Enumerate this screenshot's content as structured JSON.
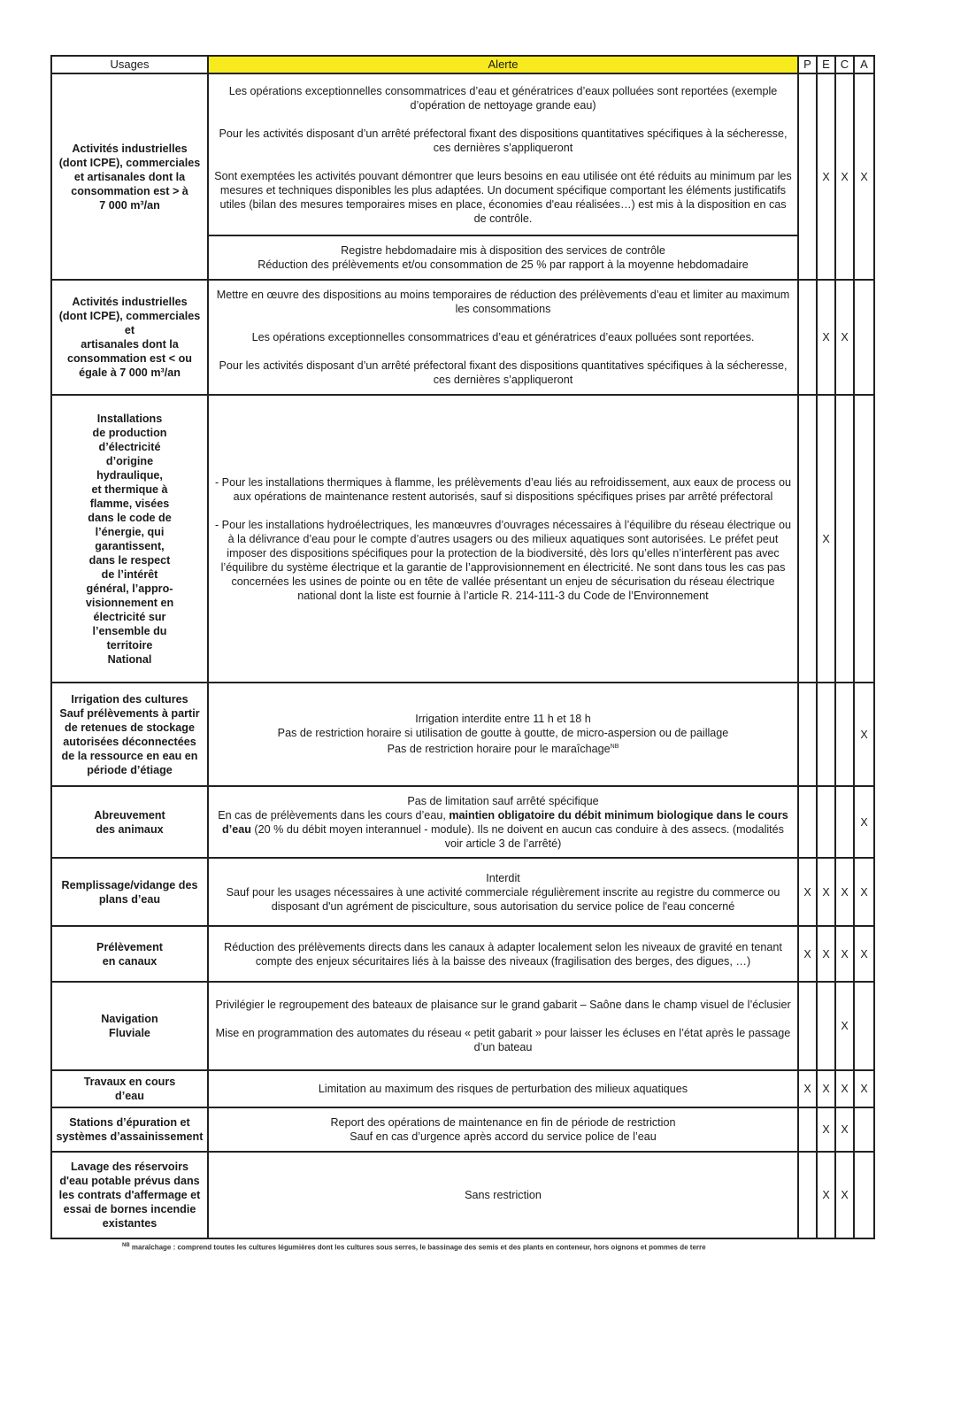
{
  "header": {
    "usages": "Usages",
    "alerte": "Alerte",
    "levels": [
      "P",
      "E",
      "C",
      "A"
    ]
  },
  "rows": [
    {
      "usage": [
        "Activités industrielles",
        "(dont ICPE), commerciales",
        "et artisanales dont la",
        "consommation est > à",
        "7 000 m³/an"
      ],
      "alert_blocks": [
        [
          [
            "Les opérations exceptionnelles consommatrices d’eau et génératrices d’eaux polluées sont reportées (exemple d’opération de nettoyage grande eau)"
          ],
          [
            "Pour les activités disposant d’un arrêté préfectoral fixant des dispositions quantitatives spécifiques à la sécheresse, ces dernières s’appliqueront"
          ],
          [
            "Sont exemptées les activités  pouvant démontrer que leurs besoins en eau utilisée ont été réduits au minimum par les mesures et techniques disponibles les plus adaptées. Un document spécifique comportant les éléments justificatifs utiles (bilan des mesures temporaires mises en place, économies d'eau réalisées…) est mis à la disposition en cas de contrôle."
          ]
        ],
        [
          [
            "Registre hebdomadaire mis à disposition des services de contrôle",
            "Réduction des prélèvements et/ou consommation de 25 % par rapport à la moyenne hebdomadaire"
          ]
        ]
      ],
      "marks": [
        "",
        "X",
        "X",
        "X"
      ]
    },
    {
      "usage": [
        "Activités industrielles",
        "(dont ICPE), commerciales",
        "et",
        "artisanales dont la",
        "consommation est < ou",
        "égale à 7 000 m³/an"
      ],
      "alert_blocks": [
        [
          [
            "Mettre en œuvre des dispositions au moins temporaires de réduction des prélèvements d’eau et limiter au maximum les consommations"
          ],
          [
            "Les opérations exceptionnelles consommatrices d’eau et génératrices d’eaux polluées sont reportées."
          ],
          [
            "Pour les activités disposant d’un arrêté préfectoral fixant des dispositions quantitatives spécifiques à la sécheresse, ces dernières s’appliqueront"
          ]
        ]
      ],
      "marks": [
        "",
        "X",
        "X",
        ""
      ]
    },
    {
      "usage": [
        "Installations",
        "de production",
        "d’électricité",
        "d’origine",
        "hydraulique,",
        "et thermique à",
        "flamme, visées",
        "dans le code de",
        "l’énergie, qui",
        "garantissent,",
        "dans le respect",
        "de l’intérêt",
        "général, l’appro-",
        "visionnement en",
        "électricité sur",
        "l’ensemble du",
        "territoire",
        "National"
      ],
      "alert_blocks": [
        [
          [
            "- Pour les installations thermiques à flamme, les prélèvements d’eau liés au refroidissement, aux eaux de process ou aux opérations de maintenance restent autorisés, sauf si dispositions spécifiques prises par arrêté préfectoral"
          ],
          [
            "- Pour les installations hydroélectriques, les manœuvres d’ouvrages nécessaires à l’équilibre du réseau électrique ou à la délivrance d’eau pour le compte d’autres usagers ou des milieux aquatiques sont autorisées. Le préfet peut imposer des dispositions spécifiques pour la protection de la biodiversité, dès lors qu’elles n’interfèrent pas avec l’équilibre du système électrique et la garantie de l’approvisionnement en électricité. Ne sont dans tous les cas pas concernées les usines de pointe ou en tête de vallée présentant un enjeu de sécurisation du réseau électrique national dont la liste est fournie à l’article R. 214-111-3 du Code de l’Environnement"
          ]
        ]
      ],
      "marks": [
        "",
        "X",
        "",
        ""
      ]
    },
    {
      "usage": [
        "Irrigation des cultures",
        "Sauf prélèvements à partir",
        "de retenues de stockage",
        "autorisées déconnectées",
        "de la ressource en eau en",
        "période d’étiage"
      ],
      "alert_blocks": [
        [
          [
            "Irrigation interdite entre 11 h et 18 h",
            "Pas de restriction horaire si utilisation de goutte à goutte, de micro-aspersion ou de paillage",
            "Pas de restriction horaire pour le maraîchage"
          ]
        ]
      ],
      "note_ref": "NB",
      "marks": [
        "",
        "",
        "",
        "X"
      ]
    },
    {
      "usage": [
        "Abreuvement",
        "des animaux"
      ],
      "alert_blocks": [
        [
          [
            "Pas de limitation sauf arrêté spécifique"
          ]
        ]
      ],
      "rich": {
        "before": "En cas de prélèvements dans les cours d’eau, ",
        "bold": "maintien obligatoire du débit minimum biologique dans le cours d’eau",
        "after": " (20 % du débit moyen interannuel - module). Ils ne doivent en aucun cas conduire à des assecs. (modalités voir article 3 de l’arrêté)"
      },
      "marks": [
        "",
        "",
        "",
        "X"
      ]
    },
    {
      "usage": [
        "Remplissage/vidange des",
        "plans d’eau"
      ],
      "alert_blocks": [
        [
          [
            "Interdit",
            "Sauf pour les usages nécessaires à une activité commerciale régulièrement inscrite au registre du commerce ou",
            "disposant d'un agrément de pisciculture, sous autorisation du service police de l'eau concerné"
          ]
        ]
      ],
      "marks": [
        "X",
        "X",
        "X",
        "X"
      ]
    },
    {
      "usage": [
        "Prélèvement",
        "en canaux"
      ],
      "alert_blocks": [
        [
          [
            "Réduction des prélèvements directs dans les canaux à adapter localement selon les niveaux de gravité en tenant compte des enjeux sécuritaires liés à la baisse des niveaux (fragilisation des berges, des digues, …)"
          ]
        ]
      ],
      "marks": [
        "X",
        "X",
        "X",
        "X"
      ]
    },
    {
      "usage": [
        "Navigation",
        "Fluviale"
      ],
      "alert_blocks": [
        [
          [
            "Privilégier le regroupement des bateaux de plaisance sur le grand gabarit – Saône dans le champ visuel de l’éclusier"
          ],
          [
            "Mise en programmation des automates du réseau « petit gabarit » pour laisser les écluses en l’état après le passage d’un bateau"
          ]
        ]
      ],
      "marks": [
        "",
        "",
        "X",
        ""
      ]
    },
    {
      "usage": [
        "Travaux en cours",
        "d’eau"
      ],
      "alert_blocks": [
        [
          [
            "Limitation au maximum des risques de perturbation des milieux aquatiques"
          ]
        ]
      ],
      "marks": [
        "X",
        "X",
        "X",
        "X"
      ]
    },
    {
      "usage": [
        "Stations d’épuration et",
        "systèmes d’assainissement"
      ],
      "alert_blocks": [
        [
          [
            "Report des opérations de maintenance en fin de période de restriction",
            "Sauf en cas d’urgence après accord du service police de l’eau"
          ]
        ]
      ],
      "marks": [
        "",
        "X",
        "X",
        ""
      ]
    },
    {
      "usage": [
        "Lavage des réservoirs",
        "d'eau potable prévus dans",
        "les contrats d'affermage et",
        "essai de bornes incendie",
        "existantes"
      ],
      "alert_blocks": [
        [
          [
            "Sans restriction"
          ]
        ]
      ],
      "marks": [
        "",
        "X",
        "X",
        ""
      ]
    }
  ],
  "footnote": {
    "ref": "NB",
    "text": "maraîchage : comprend toutes les cultures légumières dont les cultures sous serres, le bassinage des semis et des plants en conteneur,  hors oignons et pommes de terre"
  },
  "colors": {
    "header_highlight": "#f7ea1e"
  }
}
